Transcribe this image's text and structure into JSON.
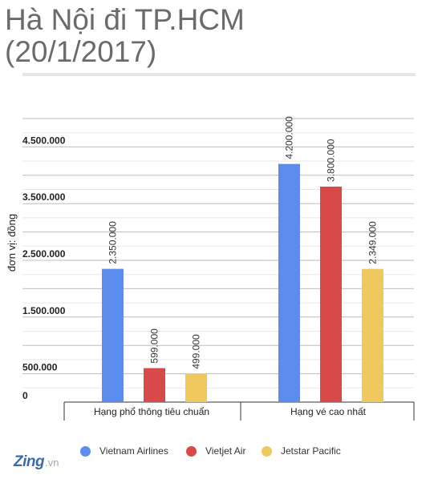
{
  "title": {
    "line1": "Hà Nội đi TP.HCM",
    "line2": "(20/1/2017)"
  },
  "brand": {
    "main": "Zing",
    "sub": ".vn"
  },
  "chart_data": {
    "type": "bar",
    "title": "Hà Nội đi TP.HCM (20/1/2017)",
    "ylabel": "đơn vị: đồng",
    "xlabel": "",
    "ylim": [
      0,
      5000000
    ],
    "grid": true,
    "legend_position": "bottom",
    "yticks": [
      {
        "value": 0,
        "label": "0"
      },
      {
        "value": 500000,
        "label": "500.000"
      },
      {
        "value": 1500000,
        "label": "1.500.000"
      },
      {
        "value": 2500000,
        "label": "2.500.000"
      },
      {
        "value": 3500000,
        "label": "3.500.000"
      },
      {
        "value": 4500000,
        "label": "4.500.000"
      }
    ],
    "categories": [
      "Hạng phổ thông tiêu chuẩn",
      "Hạng vé cao nhất"
    ],
    "series": [
      {
        "name": "Vietnam Airlines",
        "color": "#5b8def",
        "values": [
          2350000,
          4200000
        ],
        "labels": [
          "2.350.000",
          "4.200.000"
        ]
      },
      {
        "name": "Vietjet Air",
        "color": "#d84a4a",
        "values": [
          599000,
          3800000
        ],
        "labels": [
          "599.000",
          "3.800.000"
        ]
      },
      {
        "name": "Jetstar Pacific",
        "color": "#efc95e",
        "values": [
          499000,
          2349000
        ],
        "labels": [
          "499.000",
          "2.349.000"
        ]
      }
    ]
  }
}
